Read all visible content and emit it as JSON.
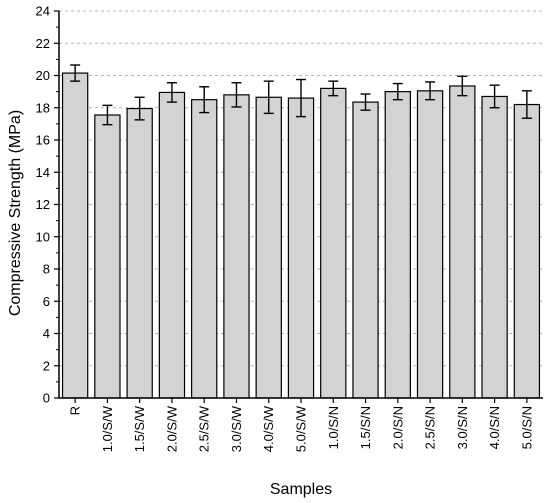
{
  "chart_data": {
    "type": "bar",
    "title": "",
    "xlabel": "Samples",
    "ylabel": "Compressive Strength (MPa)",
    "ylim": [
      0,
      24
    ],
    "yticks": [
      0,
      2,
      4,
      6,
      8,
      10,
      12,
      14,
      16,
      18,
      20,
      22,
      24
    ],
    "grid": "horizontal dashed",
    "categories": [
      "R",
      "1.0/S/W",
      "1.5/S/W",
      "2.0/S/W",
      "2.5/S/W",
      "3.0/S/W",
      "4.0/S/W",
      "5.0/S/W",
      "1.0/S/N",
      "1.5/S/N",
      "2.0/S/N",
      "2.5/S/N",
      "3.0/S/N",
      "4.0/S/N",
      "5.0/S/N"
    ],
    "values": [
      20.15,
      17.55,
      17.95,
      18.95,
      18.5,
      18.8,
      18.65,
      18.6,
      19.2,
      18.35,
      19.0,
      19.05,
      19.35,
      18.7,
      18.2
    ],
    "errors": [
      0.5,
      0.6,
      0.7,
      0.6,
      0.8,
      0.75,
      1.0,
      1.15,
      0.45,
      0.5,
      0.5,
      0.55,
      0.6,
      0.7,
      0.85
    ],
    "bar_color": "#d3d3d3",
    "edge_color": "#000000",
    "grid_color": "#b4b4b4"
  }
}
